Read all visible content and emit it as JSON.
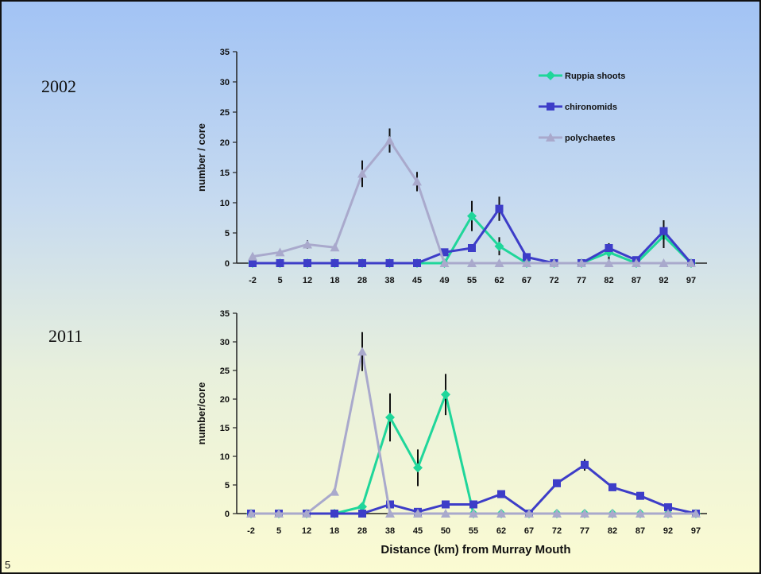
{
  "slide": {
    "year_top": "2002",
    "year_bottom": "2011",
    "page_number": "5"
  },
  "colors": {
    "ruppia": "#1fd69a",
    "chironomids": "#3d3dc8",
    "polychaetes": "#a9a9cc",
    "error_bar": "#111111"
  },
  "chart_data": [
    {
      "type": "line",
      "title": "",
      "xlabel": "",
      "ylabel": "number / core",
      "ylim": [
        0,
        35
      ],
      "yticks": [
        "0",
        "5",
        "10",
        "15",
        "20",
        "25",
        "30",
        "35"
      ],
      "categories": [
        "-2",
        "5",
        "12",
        "18",
        "28",
        "38",
        "45",
        "49",
        "55",
        "62",
        "67",
        "72",
        "77",
        "82",
        "87",
        "92",
        "97"
      ],
      "legend_placement": "top-right",
      "legend": [
        "Ruppia shoots",
        "chironomids",
        "polychaetes"
      ],
      "series": [
        {
          "name": "Ruppia shoots",
          "marker": "diamond",
          "color_key": "ruppia",
          "values": [
            0,
            0,
            0,
            0,
            0,
            0,
            0,
            0,
            7.8,
            2.8,
            0,
            0,
            0,
            1.8,
            0,
            4.5,
            0
          ],
          "errors": [
            0,
            0,
            0,
            0,
            0,
            0,
            0,
            0,
            2.5,
            1.5,
            0,
            0,
            0,
            1.5,
            0,
            2.0,
            0
          ]
        },
        {
          "name": "chironomids",
          "marker": "square",
          "color_key": "chironomids",
          "values": [
            0,
            0,
            0,
            0,
            0,
            0,
            0,
            1.8,
            2.5,
            9,
            1,
            0,
            0,
            2.5,
            0.5,
            5.3,
            0
          ],
          "errors": [
            0,
            0,
            0,
            0,
            0,
            0,
            0,
            0,
            0,
            2.0,
            0,
            0,
            0,
            0,
            0,
            1.8,
            0
          ]
        },
        {
          "name": "polychaetes",
          "marker": "triangle",
          "color_key": "polychaetes",
          "values": [
            1.1,
            1.8,
            3.1,
            2.6,
            14.8,
            20.3,
            13.5,
            0,
            0,
            0,
            0,
            0,
            0,
            0,
            0,
            0,
            0
          ],
          "errors": [
            0,
            0,
            0.7,
            0,
            2.2,
            2.0,
            1.6,
            0,
            0,
            0,
            0,
            0,
            0,
            0,
            0,
            0,
            0
          ]
        }
      ]
    },
    {
      "type": "line",
      "title": "",
      "xlabel": "Distance (km) from Murray Mouth",
      "ylabel": "number/core",
      "ylim": [
        0,
        35
      ],
      "yticks": [
        "0",
        "5",
        "10",
        "15",
        "20",
        "25",
        "30",
        "35"
      ],
      "categories": [
        "-2",
        "5",
        "12",
        "18",
        "28",
        "38",
        "45",
        "50",
        "55",
        "62",
        "67",
        "72",
        "77",
        "82",
        "87",
        "92",
        "97"
      ],
      "series": [
        {
          "name": "Ruppia shoots",
          "marker": "diamond",
          "color_key": "ruppia",
          "values": [
            0,
            0,
            0,
            0,
            1.2,
            16.8,
            8.0,
            20.8,
            0,
            0,
            0,
            0,
            0,
            0,
            0,
            0,
            0
          ],
          "errors": [
            0,
            0,
            0,
            0,
            0,
            4.2,
            3.2,
            3.6,
            0,
            0,
            0,
            0,
            0,
            0,
            0,
            0,
            0
          ]
        },
        {
          "name": "chironomids",
          "marker": "square",
          "color_key": "chironomids",
          "values": [
            0,
            0,
            0,
            0,
            0,
            1.6,
            0.3,
            1.6,
            1.6,
            3.4,
            0,
            5.3,
            8.5,
            4.6,
            3.1,
            1.1,
            0
          ],
          "errors": [
            0,
            0,
            0,
            0,
            0,
            0,
            0,
            0,
            0,
            0,
            0,
            0,
            1.0,
            0,
            0,
            0,
            0
          ]
        },
        {
          "name": "polychaetes",
          "marker": "triangle",
          "color_key": "polychaetes",
          "values": [
            0,
            0,
            0,
            3.8,
            28.3,
            0,
            0,
            0,
            0,
            0,
            0,
            0,
            0,
            0,
            0,
            0,
            0
          ],
          "errors": [
            0,
            0,
            0,
            0,
            3.4,
            0,
            0,
            0,
            0,
            0,
            0,
            0,
            0,
            0,
            0,
            0,
            0
          ]
        }
      ]
    }
  ]
}
